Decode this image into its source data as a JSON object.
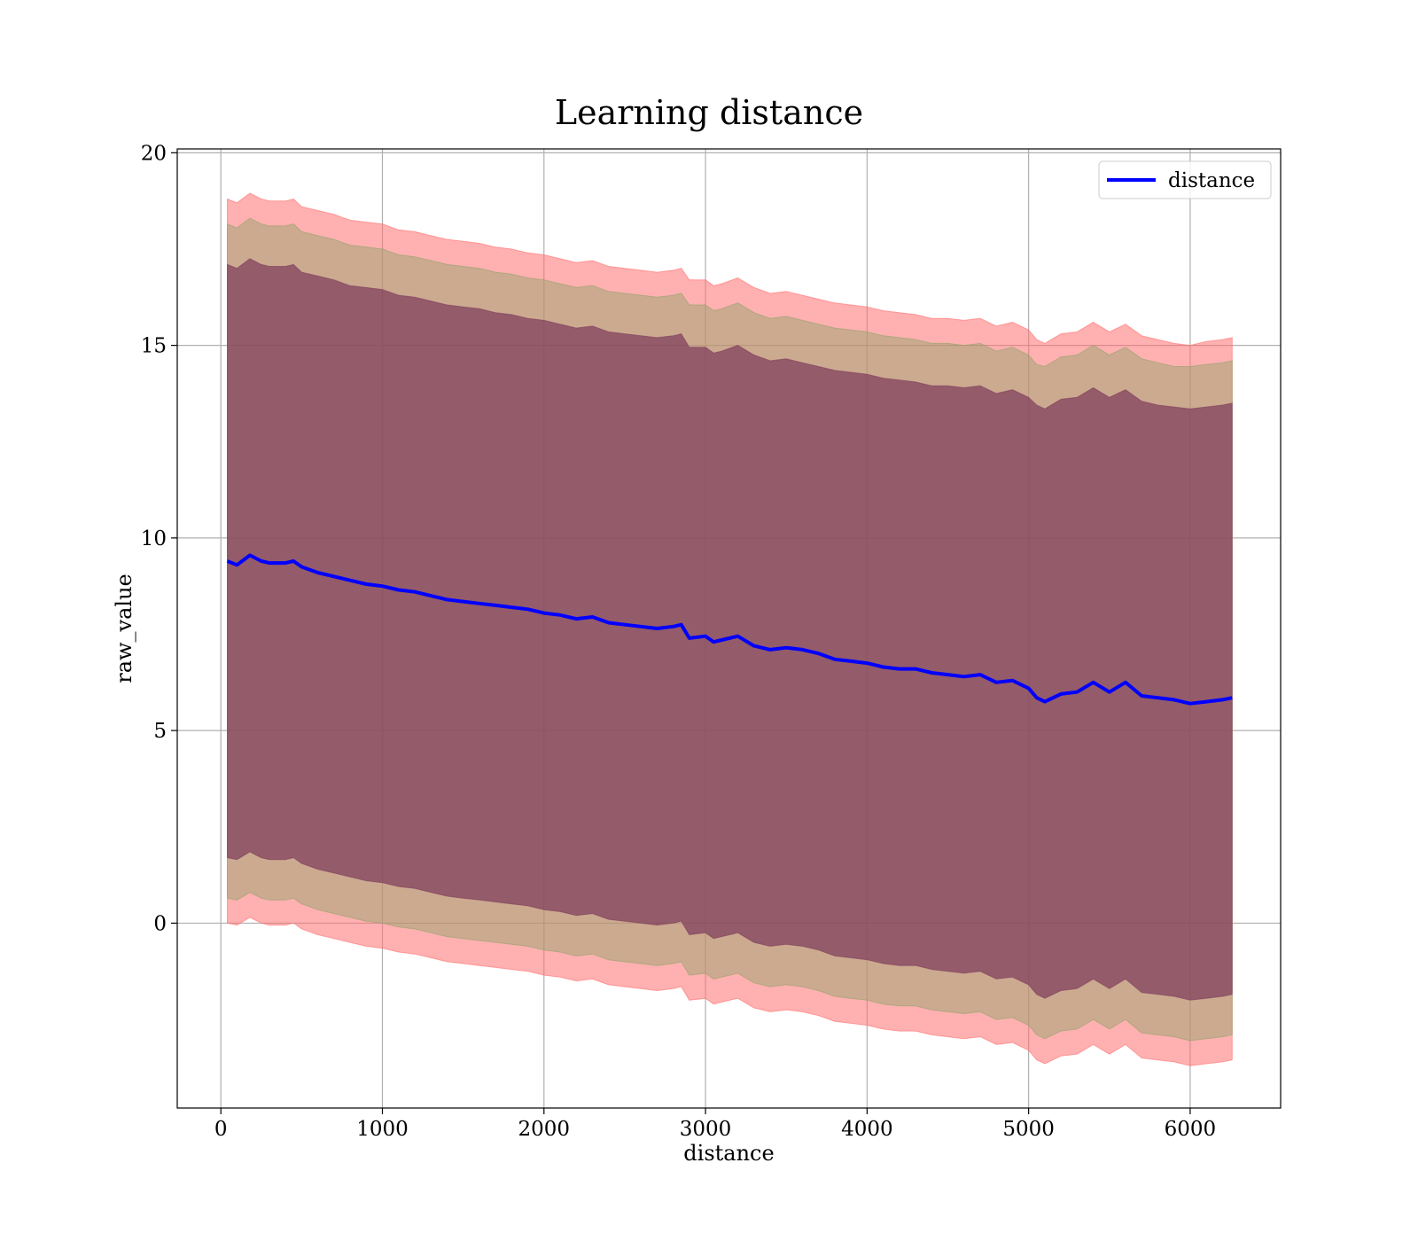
{
  "chart_data": {
    "type": "line",
    "title": "Learning distance",
    "xlabel": "distance",
    "ylabel": "raw_value",
    "xlim": [
      -270,
      6560
    ],
    "ylim": [
      -4.8,
      20.1
    ],
    "xticks": [
      0,
      1000,
      2000,
      3000,
      4000,
      5000,
      6000
    ],
    "xtick_labels": [
      "0",
      "1000",
      "2000",
      "3000",
      "4000",
      "5000",
      "6000"
    ],
    "yticks": [
      0,
      5,
      10,
      15,
      20
    ],
    "ytick_labels": [
      "0",
      "5",
      "10",
      "15",
      "20"
    ],
    "grid": true,
    "legend_position": "top-right",
    "legend_entries": [
      "distance"
    ],
    "series": [
      {
        "name": "distance",
        "color": "#0000ff",
        "x": [
          40,
          100,
          180,
          250,
          300,
          400,
          450,
          500,
          600,
          700,
          800,
          900,
          1000,
          1100,
          1200,
          1300,
          1400,
          1500,
          1600,
          1700,
          1800,
          1900,
          2000,
          2100,
          2200,
          2300,
          2400,
          2500,
          2600,
          2700,
          2800,
          2850,
          2900,
          3000,
          3050,
          3100,
          3200,
          3300,
          3400,
          3500,
          3600,
          3700,
          3800,
          3900,
          4000,
          4100,
          4200,
          4300,
          4400,
          4500,
          4600,
          4700,
          4800,
          4900,
          5000,
          5050,
          5100,
          5200,
          5300,
          5400,
          5500,
          5600,
          5700,
          5800,
          5900,
          6000,
          6100,
          6200,
          6260
        ],
        "y": [
          9.4,
          9.3,
          9.55,
          9.4,
          9.35,
          9.35,
          9.4,
          9.25,
          9.1,
          9.0,
          8.9,
          8.8,
          8.75,
          8.65,
          8.6,
          8.5,
          8.4,
          8.35,
          8.3,
          8.25,
          8.2,
          8.15,
          8.05,
          8.0,
          7.9,
          7.95,
          7.8,
          7.75,
          7.7,
          7.65,
          7.7,
          7.75,
          7.4,
          7.45,
          7.3,
          7.35,
          7.45,
          7.2,
          7.1,
          7.15,
          7.1,
          7.0,
          6.85,
          6.8,
          6.75,
          6.65,
          6.6,
          6.6,
          6.5,
          6.45,
          6.4,
          6.45,
          6.25,
          6.3,
          6.1,
          5.85,
          5.75,
          5.95,
          6.0,
          6.25,
          6.0,
          6.25,
          5.9,
          5.85,
          5.8,
          5.7,
          5.75,
          5.8,
          5.85
        ]
      }
    ],
    "bands": [
      {
        "color": "#ff7070",
        "opacity": 0.55,
        "x": [
          40,
          100,
          180,
          250,
          300,
          400,
          450,
          500,
          600,
          700,
          800,
          900,
          1000,
          1100,
          1200,
          1300,
          1400,
          1500,
          1600,
          1700,
          1800,
          1900,
          2000,
          2100,
          2200,
          2300,
          2400,
          2500,
          2600,
          2700,
          2800,
          2850,
          2900,
          3000,
          3050,
          3100,
          3200,
          3300,
          3400,
          3500,
          3600,
          3700,
          3800,
          3900,
          4000,
          4100,
          4200,
          4300,
          4400,
          4500,
          4600,
          4700,
          4800,
          4900,
          5000,
          5050,
          5100,
          5200,
          5300,
          5400,
          5500,
          5600,
          5700,
          5800,
          5900,
          6000,
          6100,
          6200,
          6260
        ],
        "upper": [
          18.8,
          18.7,
          18.95,
          18.8,
          18.75,
          18.75,
          18.8,
          18.6,
          18.5,
          18.4,
          18.25,
          18.2,
          18.15,
          18.0,
          17.95,
          17.85,
          17.75,
          17.7,
          17.65,
          17.55,
          17.5,
          17.4,
          17.35,
          17.25,
          17.15,
          17.2,
          17.05,
          17.0,
          16.95,
          16.9,
          16.95,
          17.0,
          16.7,
          16.7,
          16.55,
          16.6,
          16.75,
          16.5,
          16.35,
          16.4,
          16.3,
          16.2,
          16.1,
          16.05,
          16.0,
          15.9,
          15.85,
          15.8,
          15.7,
          15.7,
          15.65,
          15.7,
          15.5,
          15.6,
          15.4,
          15.15,
          15.05,
          15.3,
          15.35,
          15.6,
          15.35,
          15.55,
          15.25,
          15.15,
          15.05,
          15.0,
          15.1,
          15.15,
          15.2
        ],
        "lower": [
          0.0,
          -0.05,
          0.15,
          0.0,
          -0.05,
          -0.05,
          0.0,
          -0.15,
          -0.3,
          -0.4,
          -0.5,
          -0.6,
          -0.65,
          -0.75,
          -0.8,
          -0.9,
          -1.0,
          -1.05,
          -1.1,
          -1.15,
          -1.2,
          -1.25,
          -1.35,
          -1.4,
          -1.5,
          -1.45,
          -1.6,
          -1.65,
          -1.7,
          -1.75,
          -1.7,
          -1.65,
          -2.0,
          -1.95,
          -2.1,
          -2.05,
          -1.95,
          -2.2,
          -2.3,
          -2.25,
          -2.3,
          -2.4,
          -2.55,
          -2.6,
          -2.65,
          -2.75,
          -2.8,
          -2.8,
          -2.9,
          -2.95,
          -3.0,
          -2.95,
          -3.15,
          -3.1,
          -3.3,
          -3.55,
          -3.65,
          -3.45,
          -3.4,
          -3.15,
          -3.4,
          -3.15,
          -3.5,
          -3.55,
          -3.6,
          -3.7,
          -3.65,
          -3.6,
          -3.55
        ]
      },
      {
        "color": "#8fa36a",
        "opacity": 0.45,
        "x": [
          40,
          100,
          180,
          250,
          300,
          400,
          450,
          500,
          600,
          700,
          800,
          900,
          1000,
          1100,
          1200,
          1300,
          1400,
          1500,
          1600,
          1700,
          1800,
          1900,
          2000,
          2100,
          2200,
          2300,
          2400,
          2500,
          2600,
          2700,
          2800,
          2850,
          2900,
          3000,
          3050,
          3100,
          3200,
          3300,
          3400,
          3500,
          3600,
          3700,
          3800,
          3900,
          4000,
          4100,
          4200,
          4300,
          4400,
          4500,
          4600,
          4700,
          4800,
          4900,
          5000,
          5050,
          5100,
          5200,
          5300,
          5400,
          5500,
          5600,
          5700,
          5800,
          5900,
          6000,
          6100,
          6200,
          6260
        ],
        "upper": [
          18.15,
          18.05,
          18.3,
          18.15,
          18.1,
          18.1,
          18.15,
          17.95,
          17.85,
          17.75,
          17.6,
          17.55,
          17.5,
          17.35,
          17.3,
          17.2,
          17.1,
          17.05,
          17.0,
          16.9,
          16.85,
          16.75,
          16.7,
          16.6,
          16.5,
          16.55,
          16.4,
          16.35,
          16.3,
          16.25,
          16.3,
          16.35,
          16.05,
          16.05,
          15.9,
          15.95,
          16.1,
          15.85,
          15.7,
          15.75,
          15.65,
          15.55,
          15.45,
          15.4,
          15.35,
          15.25,
          15.2,
          15.15,
          15.05,
          15.05,
          15.0,
          15.05,
          14.85,
          14.95,
          14.75,
          14.5,
          14.45,
          14.7,
          14.75,
          15.0,
          14.75,
          14.95,
          14.65,
          14.55,
          14.45,
          14.45,
          14.5,
          14.55,
          14.6
        ],
        "lower": [
          0.65,
          0.6,
          0.8,
          0.65,
          0.6,
          0.6,
          0.65,
          0.5,
          0.35,
          0.25,
          0.15,
          0.05,
          0.0,
          -0.1,
          -0.15,
          -0.25,
          -0.35,
          -0.4,
          -0.45,
          -0.5,
          -0.55,
          -0.6,
          -0.7,
          -0.75,
          -0.85,
          -0.8,
          -0.95,
          -1.0,
          -1.05,
          -1.1,
          -1.05,
          -1.0,
          -1.35,
          -1.3,
          -1.45,
          -1.4,
          -1.3,
          -1.55,
          -1.65,
          -1.6,
          -1.65,
          -1.75,
          -1.9,
          -1.95,
          -2.0,
          -2.1,
          -2.15,
          -2.15,
          -2.25,
          -2.3,
          -2.35,
          -2.3,
          -2.5,
          -2.45,
          -2.65,
          -2.9,
          -3.0,
          -2.8,
          -2.75,
          -2.5,
          -2.75,
          -2.5,
          -2.85,
          -2.9,
          -2.95,
          -3.05,
          -3.0,
          -2.95,
          -2.9
        ]
      },
      {
        "color": "#7e3d5c",
        "opacity": 0.72,
        "x": [
          40,
          100,
          180,
          250,
          300,
          400,
          450,
          500,
          600,
          700,
          800,
          900,
          1000,
          1100,
          1200,
          1300,
          1400,
          1500,
          1600,
          1700,
          1800,
          1900,
          2000,
          2100,
          2200,
          2300,
          2400,
          2500,
          2600,
          2700,
          2800,
          2850,
          2900,
          3000,
          3050,
          3100,
          3200,
          3300,
          3400,
          3500,
          3600,
          3700,
          3800,
          3900,
          4000,
          4100,
          4200,
          4300,
          4400,
          4500,
          4600,
          4700,
          4800,
          4900,
          5000,
          5050,
          5100,
          5200,
          5300,
          5400,
          5500,
          5600,
          5700,
          5800,
          5900,
          6000,
          6100,
          6200,
          6260
        ],
        "upper": [
          17.1,
          17.0,
          17.25,
          17.1,
          17.05,
          17.05,
          17.1,
          16.9,
          16.8,
          16.7,
          16.55,
          16.5,
          16.45,
          16.3,
          16.25,
          16.15,
          16.05,
          16.0,
          15.95,
          15.85,
          15.8,
          15.7,
          15.65,
          15.55,
          15.45,
          15.5,
          15.35,
          15.3,
          15.25,
          15.2,
          15.25,
          15.3,
          14.95,
          14.95,
          14.8,
          14.85,
          15.0,
          14.75,
          14.6,
          14.65,
          14.55,
          14.45,
          14.35,
          14.3,
          14.25,
          14.15,
          14.1,
          14.05,
          13.95,
          13.95,
          13.9,
          13.95,
          13.75,
          13.85,
          13.65,
          13.45,
          13.35,
          13.6,
          13.65,
          13.9,
          13.65,
          13.85,
          13.55,
          13.45,
          13.4,
          13.35,
          13.4,
          13.45,
          13.5
        ],
        "lower": [
          1.7,
          1.65,
          1.85,
          1.7,
          1.65,
          1.65,
          1.7,
          1.55,
          1.4,
          1.3,
          1.2,
          1.1,
          1.05,
          0.95,
          0.9,
          0.8,
          0.7,
          0.65,
          0.6,
          0.55,
          0.5,
          0.45,
          0.35,
          0.3,
          0.2,
          0.25,
          0.1,
          0.05,
          0.0,
          -0.05,
          0.0,
          0.05,
          -0.3,
          -0.25,
          -0.4,
          -0.35,
          -0.25,
          -0.5,
          -0.6,
          -0.55,
          -0.6,
          -0.7,
          -0.85,
          -0.9,
          -0.95,
          -1.05,
          -1.1,
          -1.1,
          -1.2,
          -1.25,
          -1.3,
          -1.25,
          -1.45,
          -1.4,
          -1.6,
          -1.85,
          -1.95,
          -1.75,
          -1.7,
          -1.45,
          -1.7,
          -1.45,
          -1.8,
          -1.85,
          -1.9,
          -2.0,
          -1.95,
          -1.9,
          -1.85
        ]
      }
    ]
  }
}
